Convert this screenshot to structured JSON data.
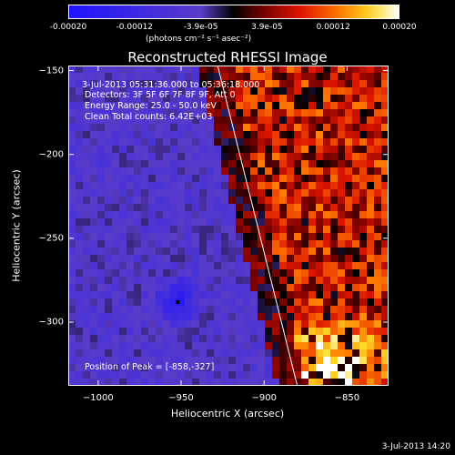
{
  "colorbar": {
    "ticks": [
      "-0.00020",
      "-0.00012",
      "-3.9e-05",
      "3.9e-05",
      "0.00012",
      "0.00020"
    ],
    "units": "(photons cm⁻² s⁻¹ asec⁻²)",
    "range": [
      -0.0002,
      0.0002
    ]
  },
  "annotations": {
    "time_range": "3-Jul-2013 05:31:36.000 to 05:36:18.000",
    "detectors": "Detectors: 3F 5F 6F 7F 8F 9F, Att 0",
    "energy": "Energy Range: 25.0 - 50.0 keV",
    "method": "Clean     Total counts: 6.42E+03",
    "peak": "Position of Peak = [-858,-327]"
  },
  "footer": {
    "timestamp": "3-Jul-2013 14:20"
  },
  "chart_data": {
    "type": "heatmap",
    "title": "Reconstructed RHESSI Image",
    "xlabel": "Heliocentric X (arcsec)",
    "ylabel": "Heliocentric Y (arcsec)",
    "xlim": [
      -1018,
      -825
    ],
    "ylim": [
      -338,
      -147
    ],
    "xticks": [
      -1000,
      -950,
      -900,
      -850
    ],
    "xtick_labels": [
      "−1000",
      "−950",
      "−900",
      "−850"
    ],
    "yticks": [
      -150,
      -200,
      -250,
      -300
    ],
    "ytick_labels": [
      "−150",
      "−200",
      "−250",
      "−300"
    ],
    "limb_line": {
      "x": [
        -928,
        -880
      ],
      "y": [
        -147,
        -338
      ]
    },
    "peak": {
      "x": -858,
      "y": -327
    },
    "min_marker": {
      "x": -952,
      "y": -288
    },
    "colormap": "red-temperature with blue negatives"
  }
}
